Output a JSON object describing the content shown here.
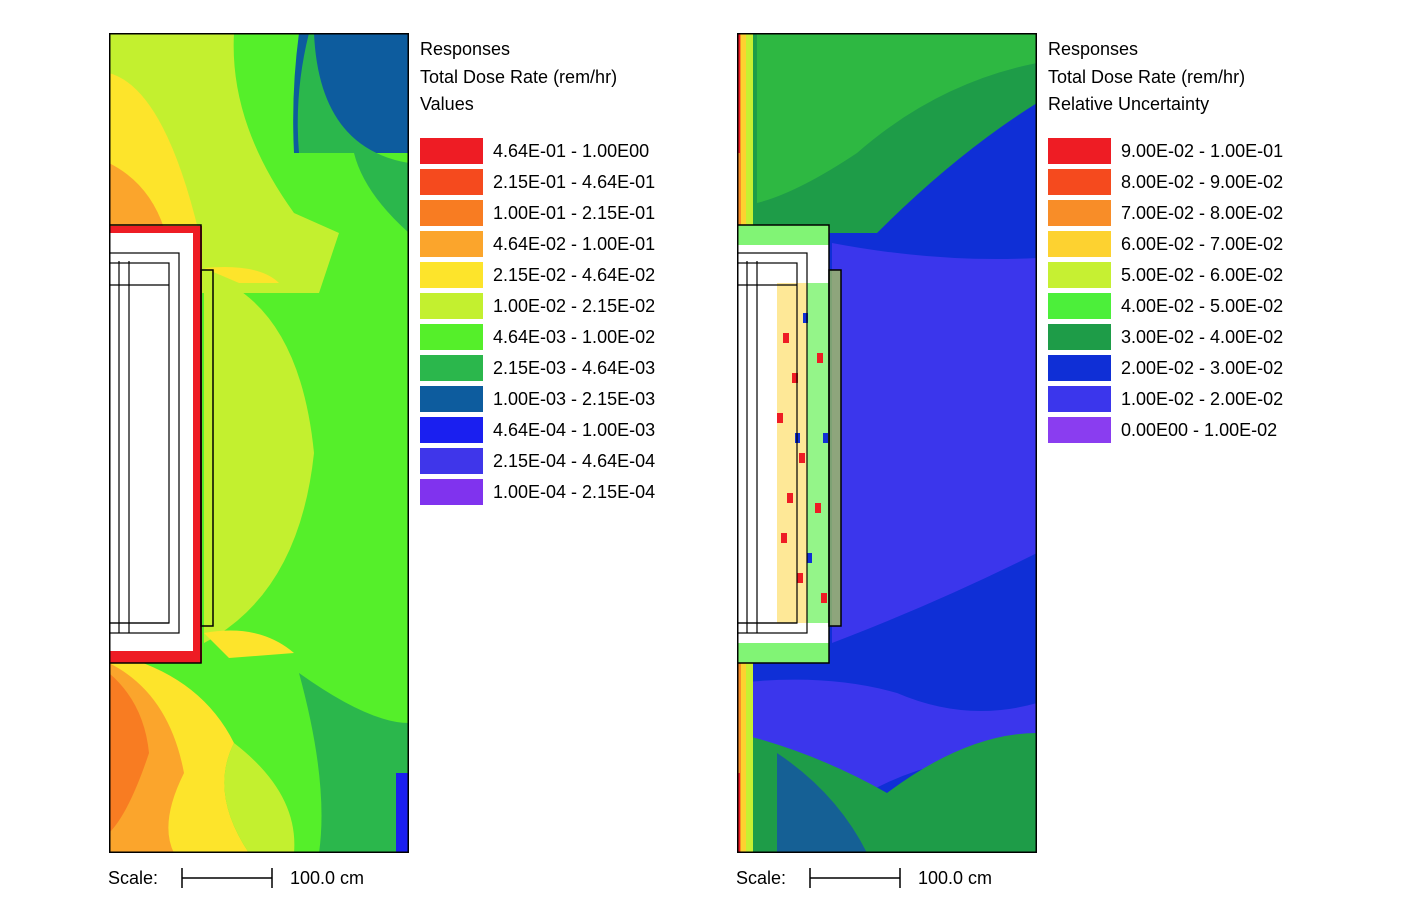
{
  "chart_data": [
    {
      "type": "heatmap",
      "legend_placement": "right",
      "legend_title": [
        "Responses",
        "Total Dose Rate (rem/hr)",
        "Values"
      ],
      "scale": {
        "label": "Scale:",
        "value": "100.0 cm"
      },
      "bins": [
        {
          "label": "4.64E-01 - 1.00E00",
          "color": "#ee1c24"
        },
        {
          "label": "2.15E-01 - 4.64E-01",
          "color": "#f54a1e"
        },
        {
          "label": "1.00E-01 - 2.15E-01",
          "color": "#f87c22"
        },
        {
          "label": "4.64E-02 - 1.00E-01",
          "color": "#fba52c"
        },
        {
          "label": "2.15E-02 - 4.64E-02",
          "color": "#fde42b"
        },
        {
          "label": "1.00E-02 - 2.15E-02",
          "color": "#c3f02f"
        },
        {
          "label": "4.64E-03 - 1.00E-02",
          "color": "#55ef2a"
        },
        {
          "label": "2.15E-03 - 4.64E-03",
          "color": "#2bb74c"
        },
        {
          "label": "1.00E-03 - 2.15E-03",
          "color": "#0d5c9e"
        },
        {
          "label": "4.64E-04 - 1.00E-03",
          "color": "#1a1ff0"
        },
        {
          "label": "2.15E-04 - 4.64E-04",
          "color": "#3f36ea"
        },
        {
          "label": "1.00E-04 - 2.15E-04",
          "color": "#8033ee"
        }
      ]
    },
    {
      "type": "heatmap",
      "legend_placement": "right",
      "legend_title": [
        "Responses",
        "Total Dose Rate (rem/hr)",
        "Relative Uncertainty"
      ],
      "scale": {
        "label": "Scale:",
        "value": "100.0 cm"
      },
      "bins": [
        {
          "label": "9.00E-02 - 1.00E-01",
          "color": "#ee1c24"
        },
        {
          "label": "8.00E-02 - 9.00E-02",
          "color": "#f54a1e"
        },
        {
          "label": "7.00E-02 - 8.00E-02",
          "color": "#f88d28"
        },
        {
          "label": "6.00E-02 - 7.00E-02",
          "color": "#fdd230"
        },
        {
          "label": "5.00E-02 - 6.00E-02",
          "color": "#c6f032"
        },
        {
          "label": "4.00E-02 - 5.00E-02",
          "color": "#4cef3a"
        },
        {
          "label": "3.00E-02 - 4.00E-02",
          "color": "#1e9c48"
        },
        {
          "label": "2.00E-02 - 3.00E-02",
          "color": "#0f2fd6"
        },
        {
          "label": "1.00E-02 - 2.00E-02",
          "color": "#3b36ec"
        },
        {
          "label": "0.00E00 - 1.00E-02",
          "color": "#8a3df0"
        }
      ]
    }
  ]
}
